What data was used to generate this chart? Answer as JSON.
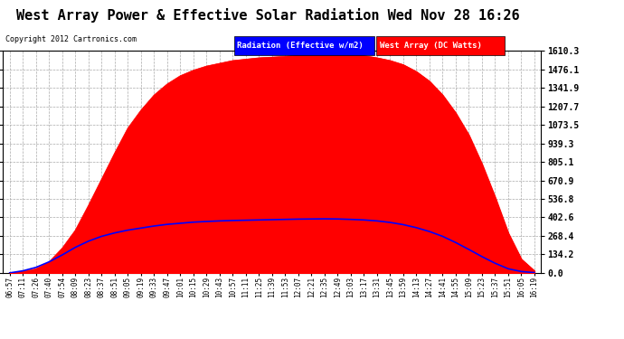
{
  "title": "West Array Power & Effective Solar Radiation Wed Nov 28 16:26",
  "copyright": "Copyright 2012 Cartronics.com",
  "legend_radiation": "Radiation (Effective w/m2)",
  "legend_west": "West Array (DC Watts)",
  "yticks": [
    0.0,
    134.2,
    268.4,
    402.6,
    536.8,
    670.9,
    805.1,
    939.3,
    1073.5,
    1207.7,
    1341.9,
    1476.1,
    1610.3
  ],
  "ymax": 1610.3,
  "ymin": 0.0,
  "background_color": "#ffffff",
  "plot_bg_color": "#ffffff",
  "grid_color": "#aaaaaa",
  "red_color": "#ff0000",
  "blue_color": "#0000ff",
  "time_labels": [
    "06:57",
    "07:11",
    "07:26",
    "07:40",
    "07:54",
    "08:09",
    "08:23",
    "08:37",
    "08:51",
    "09:05",
    "09:19",
    "09:33",
    "09:47",
    "10:01",
    "10:15",
    "10:29",
    "10:43",
    "10:57",
    "11:11",
    "11:25",
    "11:39",
    "11:53",
    "12:07",
    "12:21",
    "12:35",
    "12:49",
    "13:03",
    "13:17",
    "13:31",
    "13:45",
    "13:59",
    "14:13",
    "14:27",
    "14:41",
    "14:55",
    "15:09",
    "15:23",
    "15:37",
    "15:51",
    "16:05",
    "16:19"
  ],
  "west_array_values": [
    0,
    10,
    30,
    80,
    180,
    310,
    490,
    680,
    870,
    1050,
    1180,
    1290,
    1370,
    1430,
    1470,
    1500,
    1520,
    1540,
    1550,
    1560,
    1565,
    1570,
    1580,
    1590,
    1600,
    1595,
    1585,
    1575,
    1560,
    1540,
    1510,
    1460,
    1390,
    1290,
    1160,
    1000,
    790,
    550,
    290,
    100,
    15
  ],
  "west_array_noise": [
    0,
    0,
    0,
    0,
    0,
    0,
    0,
    0,
    0,
    0,
    0,
    0,
    0,
    0,
    0,
    0,
    0,
    0,
    0,
    0,
    0,
    0,
    0,
    0,
    30,
    0,
    0,
    0,
    0,
    0,
    0,
    0,
    0,
    0,
    0,
    0,
    0,
    0,
    0,
    0,
    0
  ],
  "radiation_values": [
    0,
    15,
    40,
    80,
    130,
    185,
    230,
    265,
    290,
    310,
    325,
    340,
    352,
    360,
    368,
    373,
    377,
    380,
    382,
    384,
    386,
    388,
    390,
    391,
    392,
    391,
    388,
    384,
    377,
    366,
    350,
    328,
    300,
    265,
    220,
    170,
    118,
    70,
    30,
    10,
    2
  ],
  "title_fontsize": 11,
  "copyright_fontsize": 6,
  "legend_fontsize": 6.5,
  "tick_fontsize": 5.5,
  "ytick_fontsize": 7
}
